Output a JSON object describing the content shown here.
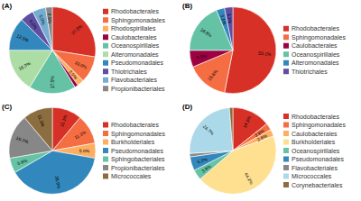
{
  "chart_data": [
    {
      "type": "pie",
      "title": "(A)",
      "categories": [
        "Rhodobacterales",
        "Sphingomonadales",
        "Rhodospirillales",
        "Caulobacterales",
        "Oceanospirillales",
        "Alteromonadales",
        "Pseudomonadales",
        "Thiotrichales",
        "Flavobacteriales",
        "Propionibacteriales"
      ],
      "values": [
        27.5,
        10.0,
        2.5,
        1.3,
        17.5,
        16.3,
        12.5,
        5.0,
        5.0,
        2.5
      ],
      "value_labels": [
        "27.5%",
        "10.0%",
        "2.5%",
        null,
        "17.5%",
        "16.3%",
        "12.5%",
        "5.0%",
        "5.0%",
        "2.5%"
      ],
      "colors": [
        "#d73027",
        "#f46d43",
        "#fdae61",
        "#9e0142",
        "#66c2a5",
        "#abdda4",
        "#3288bd",
        "#5e4fa2",
        "#74add1",
        "#878787"
      ],
      "data_labels": true,
      "legend": "right"
    },
    {
      "type": "pie",
      "title": "(B)",
      "categories": [
        "Rhodobacterales",
        "Sphingomonadales",
        "Caulobacterales",
        "Oceanospirillales",
        "Alteromonadales",
        "Thiotrichales"
      ],
      "values": [
        53.1,
        15.6,
        6.3,
        18.8,
        3.1,
        3.1
      ],
      "value_labels": [
        "53.1%",
        "15.6%",
        "6.3%",
        "18.8%",
        "3.1%",
        "3.1%"
      ],
      "colors": [
        "#d73027",
        "#f46d43",
        "#9e0142",
        "#66c2a5",
        "#3288bd",
        "#5e4fa2"
      ],
      "data_labels": true,
      "legend": "right"
    },
    {
      "type": "pie",
      "title": "(C)",
      "categories": [
        "Rhodobacterales",
        "Sphingomonadales",
        "Burkholderiales",
        "Pseudomonadales",
        "Sphingobacteriales",
        "Propionibacteriales",
        "Micrococcales"
      ],
      "values": [
        11.1,
        11.1,
        5.6,
        38.9,
        5.6,
        16.7,
        11.1
      ],
      "value_labels": [
        "11.1%",
        "11.1%",
        "5.6%",
        "38.9%",
        "5.6%",
        "16.7%",
        "11.1%"
      ],
      "colors": [
        "#d73027",
        "#f46d43",
        "#fdae61",
        "#3288bd",
        "#66c2a5",
        "#878787",
        "#8c6d3f"
      ],
      "data_labels": true,
      "legend": "right"
    },
    {
      "type": "pie",
      "title": "(D)",
      "categories": [
        "Rhodobacterales",
        "Sphingomonadales",
        "Caulobacterales",
        "Burkholderiales",
        "Oceanospirillales",
        "Pseudomonadales",
        "Flavobacteriales",
        "Micrococcales",
        "Corynebacteriales"
      ],
      "values": [
        14.3,
        2.6,
        2.6,
        44.2,
        3.9,
        5.2,
        1.3,
        24.7,
        1.3
      ],
      "value_labels": [
        "14.3%",
        "2.6%",
        "2.6%",
        "44.2%",
        "3.9%",
        "5.2%",
        null,
        "24.7%",
        null
      ],
      "colors": [
        "#d73027",
        "#f46d43",
        "#fdae61",
        "#fee090",
        "#66c2a5",
        "#3288bd",
        "#878787",
        "#abd9e9",
        "#8c6d3f"
      ],
      "data_labels": true,
      "legend": "right"
    }
  ]
}
